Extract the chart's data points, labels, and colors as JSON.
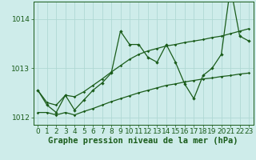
{
  "xlabel": "Graphe pression niveau de la mer (hPa)",
  "background_color": "#ceecea",
  "grid_color": "#afd8d4",
  "line_color": "#1a5c1a",
  "x_values": [
    0,
    1,
    2,
    3,
    4,
    5,
    6,
    7,
    8,
    9,
    10,
    11,
    12,
    13,
    14,
    15,
    16,
    17,
    18,
    19,
    20,
    21,
    22,
    23
  ],
  "y_main": [
    1012.55,
    1012.25,
    1012.1,
    1012.45,
    1012.15,
    1012.35,
    1012.55,
    1012.7,
    1012.9,
    1013.75,
    1013.48,
    1013.48,
    1013.22,
    1013.12,
    1013.48,
    1013.12,
    1012.68,
    1012.38,
    1012.85,
    1013.0,
    1013.28,
    1014.65,
    1013.65,
    1013.55
  ],
  "y_min": [
    1012.1,
    1012.1,
    1012.05,
    1012.1,
    1012.05,
    1012.12,
    1012.18,
    1012.25,
    1012.32,
    1012.38,
    1012.44,
    1012.5,
    1012.55,
    1012.6,
    1012.65,
    1012.68,
    1012.72,
    1012.75,
    1012.78,
    1012.8,
    1012.83,
    1012.85,
    1012.88,
    1012.9
  ],
  "y_max": [
    1012.55,
    1012.3,
    1012.25,
    1012.45,
    1012.42,
    1012.52,
    1012.65,
    1012.78,
    1012.92,
    1013.05,
    1013.18,
    1013.28,
    1013.35,
    1013.4,
    1013.45,
    1013.48,
    1013.52,
    1013.55,
    1013.58,
    1013.62,
    1013.65,
    1013.7,
    1013.75,
    1013.8
  ],
  "ylim": [
    1011.85,
    1014.35
  ],
  "yticks": [
    1012,
    1013,
    1014
  ],
  "tick_fontsize": 6.5,
  "xlabel_fontsize": 7.5
}
